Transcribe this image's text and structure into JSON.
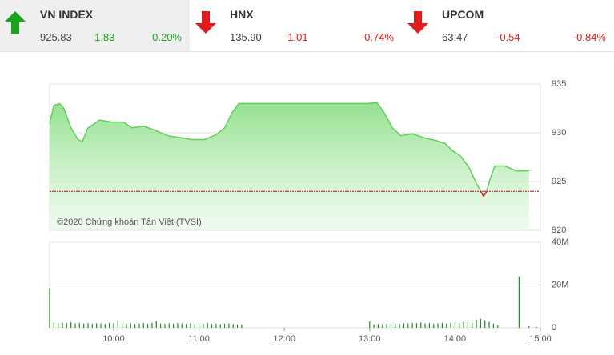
{
  "indices": [
    {
      "name": "VN INDEX",
      "value": "925.83",
      "change": "1.83",
      "percent": "0.20%",
      "direction": "up",
      "color": "#1aa41a"
    },
    {
      "name": "HNX",
      "value": "135.90",
      "change": "-1.01",
      "percent": "-0.74%",
      "direction": "down",
      "color": "#e01b1b"
    },
    {
      "name": "UPCOM",
      "value": "63.47",
      "change": "-0.54",
      "percent": "-0.84%",
      "direction": "down",
      "color": "#e01b1b"
    }
  ],
  "chart_data": [
    {
      "type": "area",
      "x": [
        555,
        558,
        562,
        565,
        570,
        575,
        578,
        582,
        590,
        599,
        607,
        613,
        621,
        630,
        638,
        647,
        655,
        664,
        672,
        678,
        683,
        688,
        689,
        779,
        785,
        790,
        796,
        802,
        810,
        818,
        827,
        833,
        838,
        844,
        850,
        855,
        860,
        862,
        865,
        868,
        875,
        883,
        892
      ],
      "values": [
        930.9,
        932.8,
        933.0,
        932.5,
        930.5,
        929.3,
        929.1,
        930.5,
        931.3,
        931.1,
        931.1,
        930.5,
        930.7,
        930.2,
        929.7,
        929.5,
        929.3,
        929.3,
        929.8,
        930.5,
        932.0,
        933.0,
        933.0,
        933.0,
        933.1,
        932.1,
        930.5,
        929.7,
        929.9,
        929.5,
        929.2,
        928.9,
        928.2,
        927.6,
        926.4,
        924.8,
        923.5,
        923.9,
        925.4,
        926.6,
        926.6,
        926.1,
        926.1
      ],
      "color": "#5fcf5a",
      "below_color": "#e01b1b",
      "reference_value": 924,
      "xlim": [
        555,
        900
      ],
      "ylim": [
        920,
        935
      ],
      "yticks": [
        920,
        925,
        930,
        935
      ],
      "grid": true,
      "watermark": "©2020 Chứng khoán Tân Việt (TVSI)"
    },
    {
      "type": "bar",
      "x": [
        555,
        558,
        561,
        564,
        567,
        570,
        573,
        576,
        579,
        582,
        585,
        588,
        591,
        594,
        597,
        600,
        603,
        606,
        609,
        612,
        615,
        618,
        621,
        624,
        627,
        630,
        633,
        636,
        639,
        642,
        645,
        648,
        651,
        654,
        657,
        660,
        663,
        666,
        669,
        672,
        675,
        678,
        681,
        684,
        687,
        690,
        780,
        783,
        786,
        789,
        792,
        795,
        798,
        801,
        804,
        807,
        810,
        813,
        816,
        819,
        822,
        825,
        828,
        831,
        834,
        837,
        840,
        843,
        846,
        849,
        852,
        855,
        858,
        861,
        864,
        867,
        870,
        885,
        892,
        897
      ],
      "values": [
        18.5,
        2.5,
        2.3,
        2.4,
        2.2,
        2.6,
        2.1,
        2.3,
        2.0,
        2.2,
        1.9,
        2.1,
        2.0,
        1.8,
        2.2,
        2.1,
        3.6,
        2.0,
        1.9,
        2.1,
        1.8,
        2.0,
        2.2,
        1.9,
        2.3,
        3.2,
        2.0,
        1.8,
        2.1,
        1.9,
        2.2,
        2.0,
        1.8,
        2.1,
        1.7,
        2.0,
        1.9,
        2.2,
        1.8,
        2.0,
        1.7,
        1.9,
        2.1,
        1.8,
        1.6,
        1.5,
        3.0,
        1.6,
        1.8,
        1.7,
        1.9,
        1.8,
        2.0,
        1.9,
        2.1,
        2.0,
        2.3,
        2.2,
        2.5,
        2.0,
        2.2,
        1.9,
        2.1,
        2.3,
        2.0,
        2.4,
        2.6,
        2.2,
        2.8,
        3.0,
        2.5,
        3.8,
        4.2,
        3.5,
        2.8,
        2.0,
        1.2,
        24.0,
        0.8,
        0.5
      ],
      "color": "#1f8a1f",
      "xlim": [
        555,
        900
      ],
      "ylim": [
        0,
        40
      ],
      "yticks": [
        0,
        {
          "value": 20,
          "label": "20M"
        },
        {
          "value": 40,
          "label": "40M"
        }
      ],
      "grid": true,
      "xticks": [
        {
          "value": 600,
          "label": "10:00"
        },
        {
          "value": 660,
          "label": "11:00"
        },
        {
          "value": 720,
          "label": "12:00"
        },
        {
          "value": 780,
          "label": "13:00"
        },
        {
          "value": 840,
          "label": "14:00"
        },
        {
          "value": 900,
          "label": "15:00"
        }
      ]
    }
  ]
}
